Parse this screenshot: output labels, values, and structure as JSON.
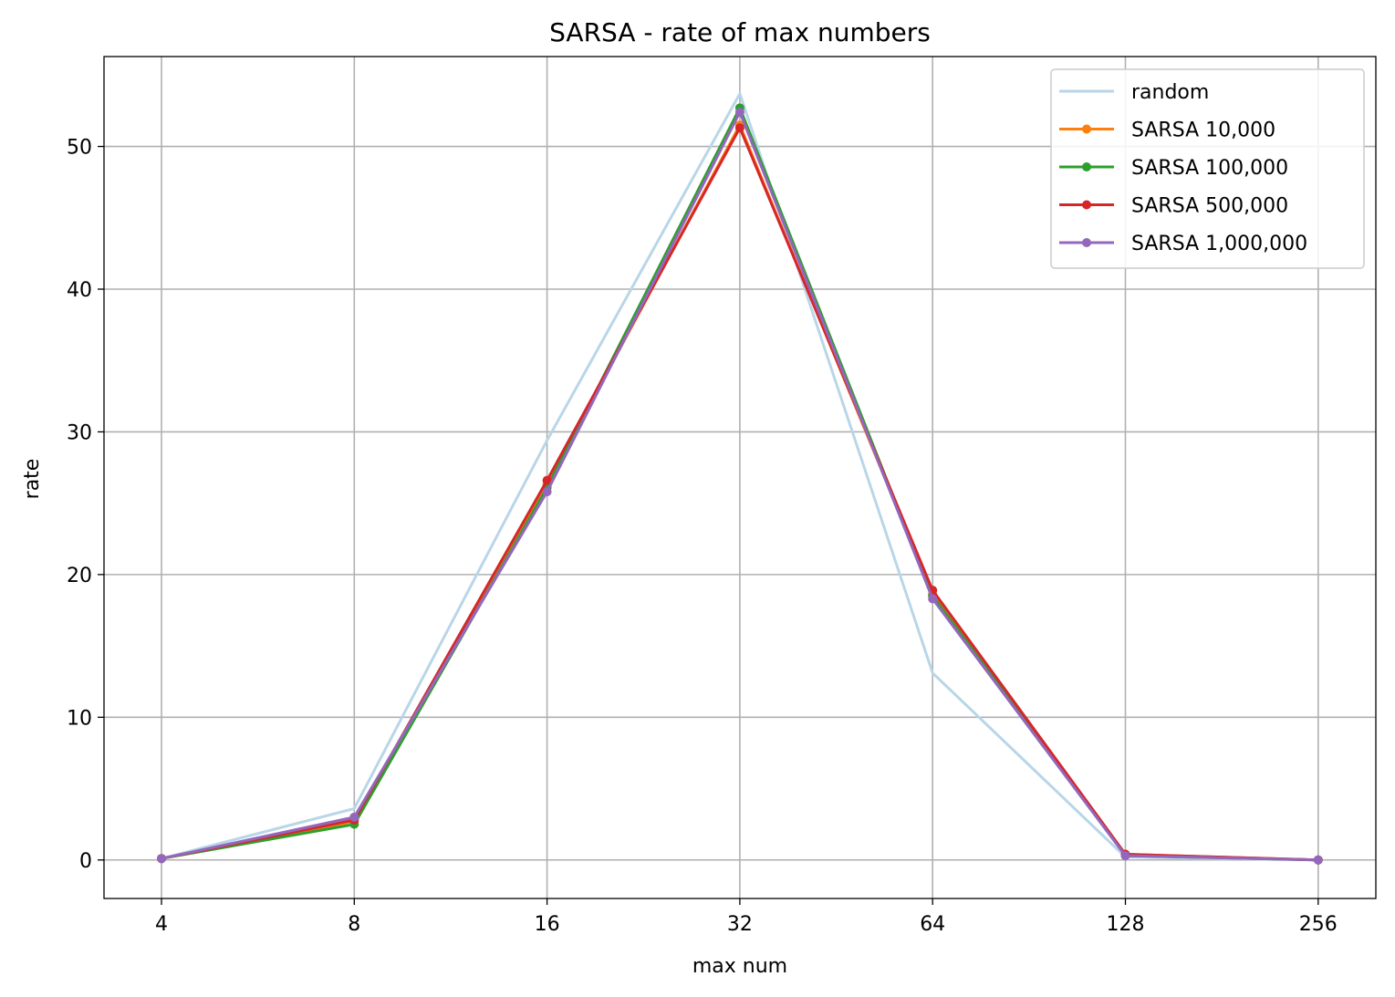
{
  "chart_data": {
    "type": "line",
    "title": "SARSA - rate of max numbers",
    "xlabel": "max num",
    "ylabel": "rate",
    "categories": [
      "4",
      "8",
      "16",
      "32",
      "64",
      "128",
      "256"
    ],
    "ylim": [
      -2.7,
      56.3
    ],
    "yticks": [
      0,
      10,
      20,
      30,
      40,
      50
    ],
    "grid": true,
    "legend_position": "top-right",
    "series": [
      {
        "name": "random",
        "color": "#b9d6e8",
        "markers": false,
        "values": [
          0.1,
          3.6,
          29.4,
          53.7,
          13.1,
          0.2,
          0.0
        ]
      },
      {
        "name": "SARSA 10,000",
        "color": "#ff7f0e",
        "markers": true,
        "values": [
          0.1,
          2.7,
          26.3,
          51.5,
          18.6,
          0.4,
          0.0
        ]
      },
      {
        "name": "SARSA 100,000",
        "color": "#2ca02c",
        "markers": true,
        "values": [
          0.1,
          2.5,
          26.1,
          52.7,
          18.5,
          0.3,
          0.0
        ]
      },
      {
        "name": "SARSA 500,000",
        "color": "#d62728",
        "markers": true,
        "values": [
          0.1,
          2.8,
          26.6,
          51.3,
          18.9,
          0.4,
          0.0
        ]
      },
      {
        "name": "SARSA 1,000,000",
        "color": "#9467bd",
        "markers": true,
        "values": [
          0.1,
          3.0,
          25.8,
          52.4,
          18.3,
          0.3,
          0.0
        ]
      }
    ]
  }
}
